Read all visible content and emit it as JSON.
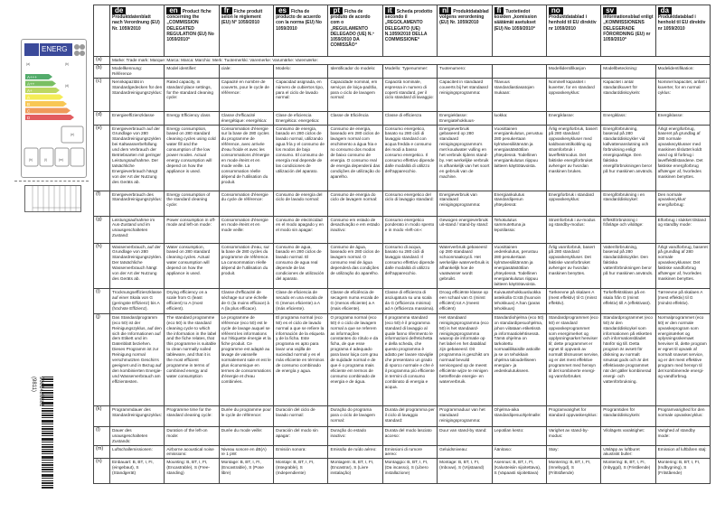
{
  "energy_label": {
    "brand_text": "ENERG",
    "classes": [
      "A+++",
      "A++",
      "A+",
      "A",
      "B",
      "C",
      "D"
    ],
    "placeholders": [
      "(a)",
      "(b)",
      "(d)",
      "(e)",
      "(h)",
      "(i)",
      "(m)"
    ]
  },
  "barcode": {
    "number": "9001426801",
    "code": "(9811)"
  },
  "columns": [
    {
      "code": "de",
      "title": "Produktdatenblatt nach Verordnung (EU) Nr. 1059/2010"
    },
    {
      "code": "en",
      "title": "Product fiche concerning the „COMMISSION DELEGATED REGULATION (EU) No 1059/2010“"
    },
    {
      "code": "fr",
      "title": "Fiche produit selon le règlement (EU) N° 1059/2010"
    },
    {
      "code": "es",
      "title": "Ficha de producto de acuerdo con la norma (EU) No 1059/2010"
    },
    {
      "code": "pt",
      "title": "Ficha de produto de acordo com o „REGULAMENTO DELEGADO (UE) N.º 1059/2010 DA COMISSÃO“"
    },
    {
      "code": "it",
      "title": "Scheda prodotto secondo il „REGOLAMENTO DELEGATO (UE) N.1059/2010 DELLA COMMISSIONE“"
    },
    {
      "code": "nl",
      "title": "Produktdatablad volgens verordening (EU) Nr. 1059/2010"
    },
    {
      "code": "fi",
      "title": "Tuotetiedot koskien „komission säätämät asetukset (EU) No 1059/2010“"
    },
    {
      "code": "no",
      "title": "Produktdatablad i henhold til EU direktiv nr 1059/2010"
    },
    {
      "code": "sv",
      "title": "Informationsblad enligt „KOMMISSIONENS DELEGERADE FÖRORDNING (EU) nr 1059/2010“"
    },
    {
      "code": "da",
      "title": "Produktdatablad i henhold til EU direktiv nr 1059/2010"
    }
  ],
  "row_a": {
    "label": "(a)",
    "text": "Marke: Trade mark: Marque: Marca: Marca: Marchio: Merk: Tuotemerkki: Varemerke: Varumärke: Varemærke:"
  },
  "rows": [
    {
      "label": "(b)",
      "cells": [
        "Modellkennung: Référence",
        "Model identifier:",
        "ciale:",
        "Modelo:",
        "Identificador do modelo:",
        "Modello: Typenummer:",
        "Tuotenumero:",
        "",
        "Modellidentifikasjon",
        "Modellbeteckning:",
        "Modelidentifikation:"
      ]
    },
    {
      "label": "(c)",
      "cells": [
        "Nennkapazität in Standardgedecken für den Standardreinigungszyklus:",
        "Rated capacity, in standard place settings, for the standard cleaning cycle:",
        "Capacité en nombre de couverts, pour le cycle de référence:",
        "Capacidad asignada, en número de cubiertos tipo, para el ciclo de lavado normal:",
        "Capacidade nominal, em serviços de loiça-padrão, para o ciclo de lavagem normal:",
        "Capacità nominale, espressa in numero di coperti standard, per il ciclo standard di lavaggio:",
        "Capaciteit in standaard couverts bij het standaard reinigingsprogramma:",
        "Tilavuus standardiastiasatojen mukaan:",
        "Nominell kapasitet i kuverter, for en standard oppvaskesyklus:",
        "Kapacitet i antal standardkuvert för standarddiskcykeln:",
        "Nominel kapacitet, anført i kuverter, for en normal cyklus:"
      ]
    },
    {
      "label": "(d)",
      "cells": [
        "Energieeffizienzklasse",
        "Energy Efficiency class",
        "Classe d'efficacité énergétique: energética:",
        "Clase de eficiencia Energética: energetica:",
        "Classe de Eficiência",
        "Classe di efficienza",
        "Energieklasse: Energiatehokkuus-",
        "luokka:",
        "Energiklasse:",
        "Energiklass:",
        "Energiklasse:"
      ]
    },
    {
      "label": "(e)",
      "cells": [
        "Energieverbrauch auf der Grundlage von 280 Standardreinigungszyklen bei Kaltwasserbefüllung und dem Verbrauch der Betriebsarten mit geringer Leistungsaufnahme. Der tatsächliche Energieverbrauch hängt von der Art der Nutzung des Geräts ab.",
        "Energy consumption, based on 280 standard cleaning cycles using cold water fill and the consumption of the low power modes. Actual energy consumption will depend on how the appliance is used.",
        "Consommation d'énergie sur la base de 280 cycles du programme de référence, avec arrivée d'eau froide et avec les consommations d'énergie en mode éteint et en mode veille. La consommation réelle dépend de l'utilisation du produit.",
        "Consumo de energía, basado en 280 ciclos de lavado normal, utilizando agua fría y el consumo de los modos de bajo consumo. El consumo de energía real depende de las condiciones de utilización del aparato.",
        "Consumo de energia, baseado em 280 ciclos de lavagem normal com enchimento a água fria e no consumo dos modos de baixo consumo de energia. O consumo real de energia dependerá das condições de utilização do aparelho.",
        "Consumo energetico, basato su 280 cicli di lavaggio standard con acqua fredda e consumo dei modi a basso consumo energetico. Il consumo effettivo dipende dalle modalità di utilizzo dell'apparecchio.",
        "Energieverbruik gebaseerd op 280 standaard reinigingsprogramma's met koudwater vulling en het verbruik tijdens stand-by. Het werkelijke verbruik is afhankelijk van het soort en gebruik van de machine.",
        "Vuosittainen energiankulutus, perustuu 280 pesukertaan kylmävesiliitännän ja energiasäästötilan yhteydessä. Todellinen energiankulutus riippuu laitteen käyttötavoista.",
        "Årlig energiforbruk, basert på 280 standard oppvaskesykluser med kaldtvannstilkobling og strømforbruk i laveffektmodus. Det faktiske energiforbruket avhenger av hvordan maskinen brukes.",
        "Energiförbrukning, baserad på 280 standarddiskcykler vid kallvattenanslutning och förbrukning enligt energisparläge. Den faktiska energiförbrukningen beror på hur maskinen används.",
        "Årligt energiforbrug, baseret på grundlag af 280 normale opvaskecyklusser med maskinen tilsluttet koldt vand og til forbrug i laveffekttilstandene. Det faktiske energiforbrug afhænger af, hvorledes maskinen benyttes."
      ]
    },
    {
      "label": "(f)",
      "cells": [
        "Energieverbrauch des Standardreinigungszyklus:",
        "Energy consumption of the standard cleaning cycle:",
        "Consommation d'énergie du cycle de référence:",
        "Consumo de energía del ciclo de lavado normal:",
        "Consumo de energia do ciclo de lavagem normal:",
        "Consumo energetico del ciclo di lavaggio standard:",
        "Energieverbruik van standaard reinigingsprogramma:",
        "Energiankulutus standardipesun yhteydessä:",
        "Energiforbruk i standard oppvaskesyklus:",
        "Energiförbrukning i en standarddiskcykel:",
        "Den normale opvaskecyklus' energiforbrug:"
      ]
    },
    {
      "label": "(g)",
      "cells": [
        "Leistungsaufnahme im Aus-Zustand und im unausgeschalteten Zustand:",
        "Power consumption in off-mode and left-on mode:",
        "Consommation d'énergie en mode éteint et en mode veille:",
        "Consumo de electricidad en el modo apagado y en el modo sin apagar:",
        "Consumo em estado de desactivação e em estado inactivo:",
        "Consumo energetico ponderato in modo spento e in modo «left-on»:",
        "Gewogen energieverbruik uit-stand / stand-by stand:",
        "Tehokulutus sammutettuna ja lepotilassa:",
        "Strømforbruk i av-modus og standby-modus:",
        "Effektförbrukning i frånläge och viloläge:",
        "Elforbrug i slukket tilstand og standby mode:"
      ]
    },
    {
      "label": "(h)",
      "cells": [
        "Wasserverbrauch, auf der Grundlage von 280 Standardreinigungszyklen. Der tatsächliche Wasserverbrauch hängt von der Art der Nutzung des Geräts ab.",
        "Water consumption, based on 280 standard cleaning cycles. Actual water consumption will depend on how the appliance is used.",
        "Consommation d'eau, sur la base de 280 cycles du programme de référence. La consommation réelle dépend de l'utilisation du produit.",
        "Consumo de agua, basado en 280 ciclos de lavado normal. El consumo de agua real depende de las condiciones de utilización del aparato.",
        "Consumo de água, baseado em 280 ciclos de lavagem normal. O consumo real de água dependerá das condições de utilização do aparelho.",
        "Consumo di acqua, basato su 280 cicli di lavaggio standard. Il consumo effettivo dipende dalle modalità di utilizzo dell'apparecchio.",
        "Waterverbruik gebaseerd op 280 standaard schoonmaakcycli. Het werkelijke waterverbruik is afhankelijk hoe de vaatwasser wordt gebruikt.",
        "Vuosittainen vedenkulutus, perustuu 280 pesukertaan kylmävesiliitännän ja energiasäästötilan yhteydessä. Todellinen energiankulutus riippuu laitteen käyttötavoista.",
        "Årlig vannforbruk, basert på 280 standard oppvaskesykluser. Det faktiske vannforbruket avhenger av hvordan maskinen benyttes.",
        "Vattenförbrukning, baserad på 280 standarddiskcykler. Den faktiska vattenförbrukningen beror på hur maskinen används.",
        "Årligt vandforbrug, baseret på grundlag af 280 normale opvaskecyklusser. Det faktiske vandforbrug afhænger af, hvorledes maskinen benyttes."
      ]
    },
    {
      "label": "(i)",
      "cells": [
        "Trocknungseffizienzklasse auf einer Skala von G (geringste Effizienz) bis A (höchste Effizienz).",
        "Drying efficiency on a scale from G (least efficient) to A (most efficient).",
        "Classe d'efficacité de séchage sur une échelle de G (la moins efficace) à A (la plus efficace).",
        "Clase de eficiencia de secado en una escala de G (menos eficiente) a A (más eficiente).",
        "Classe de eficiência de secagem numa escala de G (menos eficiente) a A (mais eficiente).",
        "Classe di efficienza di asciugatura su una scala da G (efficienza minima) ad A (efficienza massima).",
        "Droog efficiënte klasse op een schaal van G (minst efficiënt) tot A (meest efficiënt)",
        "Kuivaustehokkuusluokka asteikolla G:stä (huonoin tehokkuus) A:han (paras tehokkuus)",
        "Tørkeevne på skalaen A (mest effektiv) til G (minst effektiv).",
        "Torkeffektsklass på en skala från G (minst effektiv) till A (effektivast).",
        "Tørreevne på skalaen A (mest effektiv) til G (mindst effektiv)."
      ]
    },
    {
      "label": "(j)",
      "cells": [
        "Das Standardprogramm (eco 50) ist der Reinigungszyklus, auf den sich die Informationen auf dem Etikett und im Datenblatt beziehen. Dieses Programm ist zur Reinigung normal verschmutzten Geschirrs geeignet und in Bezug auf den kombinierten Energie- und Wasserverbrauch am effizientesten.",
        "The standard programme (eco 50) is the standard cleaning cycle to which the information in the label and the fiche relates, that this programme is suitable to clean normally soiled tableware, and that it is the most efficient programme in terms of combined energy and water consumption",
        "Le programme de référence (eco 50) est le cycle de lavage auquel se réfèrent les informations sur l'étiquette énergie et la fiche produit. Ce programme est adapté au lavage de vaisselle normalement sale et est le plus économique en termes de consommations d'énergie et d'eau combinées.",
        "El programa normal (eco 50) es el ciclo de lavado normal a que se refiere la información de la etiqueta y de la ficha. Este programa es apto para lavar una vajilla de suciedad normal y es el más eficiente en términos de consumo combinado de energía y agua.",
        "O programa normal (eco 50) é o ciclo de lavagem normal a que se referem as informações constantes do rótulo e da ficha, de que esse programa é adequado para lavar loiça com grau de sujidade normal e de que é o programa mais eficiente em termos de consumo combinado de energia e de água.",
        "Il programma standard (eco 50) è il programma standard di lavaggio al quale fanno riferimento le informazioni dell'etichetta e della scheda, che questo programma è adatto per lavare stoviglie che presentano un grado di sporco normale e che è il programma più efficiente in termini di consumo combinato di energia e acqua.",
        "Het standaard reinigingsprogramma (eco 50) is het standaard-reinigingsprogramma waarop de informatie op het label en het datablad zijn gebaseerd. Dit programma is geschikt om normaal bevuild servicegoed op de meest efficiënte wijze te reinigen betreffende energie- en waterverbruik.",
        "Standardiohjelma (eco 50) on standardipesuohjelma, johon viitataan etiketissä ja informaatiolehtisessä. Tämä ohjelma on tarkoitettu normaalilikaisille astioille ja se on tehokkain ohjelma taloudelliseen energian- ja vedenkulutukseen.",
        "Standardprogrammet (eco 50) er standard oppvaskeprogrammet som energimerket og opplysningsarket henviser til; dette programmet er egnet til oppvask av normalt tilsmusset servise, og er det mest effektive programmet med hensyn til det kombinerte energi- og vannforbruket.",
        "Standardprogrammet (eco 50) är den standarddiskcykel som informationen på etiketten och informationsbladet hänför sig till. Detta program är avsett för diskning av normalt smutsat gods och är det effektivaste programmet när det gäller kombinerad energi- och vattenförbrukning.",
        "Normalprogrammet (eco 50) er den normale opvaskeprogram som energimærket og oplysningsskemaet henviser til, dette program er egnet til opvask af normalt snavset service, og er det mest effektive program med hensyn til det kombinerede energi- og vandforbrug."
      ]
    },
    {
      "label": "(k)",
      "cells": [
        "Programmdauer des Standardreinigungszyklus:",
        "Programme time for the standard cleaning cycle:",
        "Durée du programme pour le cycle de référence:",
        "Duración del ciclo de lavado normal:",
        "Duração do programa para o ciclo de lavagem normal:",
        "Durata del programma per il ciclo di lavaggio standard:",
        "Programmaduur van het standaard reinigingsprogramma:",
        "Ohjelma-aika standardipesuohjelmalle:",
        "Programvarighet for standard oppvaskesyklus:",
        "Programtiden för standarddiskcykeln:",
        "Programvarighed for den normale opvaskecyklus:"
      ]
    },
    {
      "label": "(l)",
      "cells": [
        "Dauer des unausgeschalteten Zustands:",
        "Duration of the left-on mode:",
        "Durée du mode veille:",
        "Duración del modo sin apagar:",
        "Duração do estado inactivo:",
        "Durata del modo lasciato acceso:",
        "Duur van stand-by stand:",
        "Lepotilan kesto:",
        "Varighet av stand-by-modus:",
        "Vilolägets varaktighet:",
        "Varighed af standby mode:"
      ]
    },
    {
      "label": "(m)",
      "cells": [
        "Luftschallemissionen:",
        "Airborne acoustical noise emissions:",
        "Niveau sonore en dB(A) re 1 pW:",
        "Emisión sonora:",
        "Emissão de ruído aéreo:",
        "Emissioni di rumore aereo:",
        "Geluidsniveau:",
        "Äänitaso:",
        "Støy:",
        "Utsläpp av luftburet akustiskt buller:",
        "Emission af luftbåren støj:"
      ]
    },
    {
      "label": "(n)",
      "cells": [
        "Einbauart: B, BT, I, FI, (eingebaut), S (Standgerät)",
        "Mounting: B, BT, I, FI, (Encastrable), S (Free-standing)",
        "Montage: B, BT, I, FI, (Encastrable), S (Pose libre)",
        "Montaje: B, BT, I, FI, (Integrable), S (Independiente)",
        "Montagem: B, BT, I, FI, (Encastrar), S (Livre instalação)",
        "Montaggio: B, BT, I, FI, (Da incasso), S (Libero installazione)",
        "Montage: B, BT, I, FI, (Inbouw), S (Vrijstaand)",
        "Asennus: B, BT, I, FI, (Kalusteisiin sijoitettava), S (Vapaasti sijoitettava)",
        "Montering: B, BT, I, FI, (Innebygd), S (Frittstående)",
        "Montering: B, BT, I, FI, (Inbyggd), S (Fristående)",
        "Montering: B, BT, I, FI, (Indbygning), S (Fritstående)"
      ]
    }
  ]
}
